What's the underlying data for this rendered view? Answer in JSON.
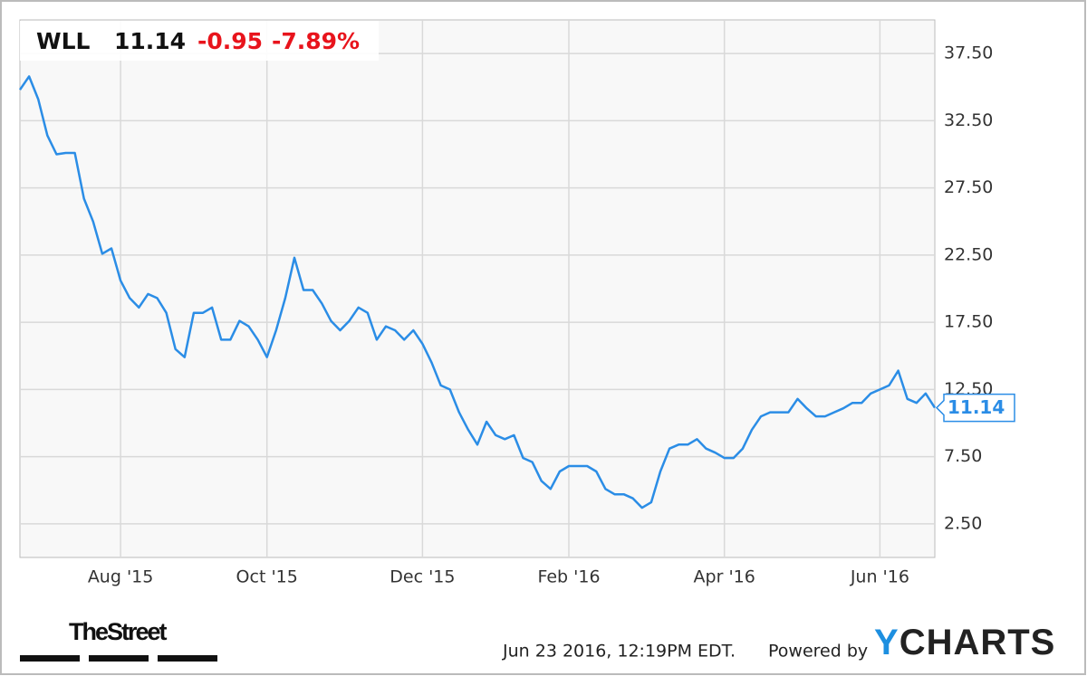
{
  "chart_data": {
    "type": "line",
    "ticker": "WLL",
    "price": "11.14",
    "change": "-0.95",
    "change_percent": "-7.89%",
    "categories": [
      null,
      null,
      null,
      null,
      null,
      null,
      null,
      null,
      null,
      null,
      null,
      "Aug '15",
      null,
      null,
      null,
      null,
      null,
      null,
      null,
      null,
      null,
      null,
      null,
      null,
      null,
      null,
      null,
      "Oct '15",
      null,
      null,
      null,
      null,
      null,
      null,
      null,
      null,
      null,
      null,
      null,
      null,
      null,
      null,
      null,
      null,
      "Dec '15",
      null,
      null,
      null,
      null,
      null,
      null,
      null,
      null,
      null,
      null,
      null,
      null,
      null,
      null,
      null,
      "Feb '16",
      null,
      null,
      null,
      null,
      null,
      null,
      null,
      null,
      null,
      null,
      null,
      null,
      null,
      null,
      null,
      null,
      "Apr '16",
      null,
      null,
      null,
      null,
      null,
      null,
      null,
      null,
      null,
      null,
      null,
      null,
      null,
      null,
      null,
      null,
      "Jun '16",
      null,
      null,
      null,
      null,
      null,
      null
    ],
    "values": [
      34.8,
      35.8,
      34.1,
      31.4,
      30.0,
      30.1,
      30.1,
      26.7,
      25.0,
      22.6,
      23.0,
      20.6,
      19.3,
      18.6,
      19.6,
      19.3,
      18.2,
      15.5,
      14.9,
      18.2,
      18.2,
      18.6,
      16.2,
      16.2,
      17.6,
      17.2,
      16.2,
      14.9,
      16.9,
      19.3,
      22.3,
      19.9,
      19.9,
      18.9,
      17.6,
      16.9,
      17.6,
      18.6,
      18.2,
      16.2,
      17.2,
      16.9,
      16.2,
      16.9,
      15.9,
      14.5,
      12.8,
      12.5,
      10.8,
      9.5,
      8.4,
      10.1,
      9.1,
      8.8,
      9.1,
      7.4,
      7.1,
      5.7,
      5.1,
      6.4,
      6.8,
      6.8,
      6.8,
      6.4,
      5.1,
      4.7,
      4.7,
      4.4,
      3.7,
      4.1,
      6.4,
      8.1,
      8.4,
      8.4,
      8.8,
      8.1,
      7.8,
      7.4,
      7.4,
      8.1,
      9.5,
      10.5,
      10.8,
      10.8,
      10.8,
      11.8,
      11.1,
      10.5,
      10.5,
      10.8,
      11.1,
      11.5,
      11.5,
      12.2,
      12.5,
      12.8,
      13.9,
      11.8,
      11.5,
      12.2,
      11.14
    ],
    "color": "#2b8de6",
    "ylim": [
      0,
      40
    ],
    "yticks": [
      {
        "value": 2.5,
        "label": "2.50"
      },
      {
        "value": 7.5,
        "label": "7.50"
      },
      {
        "value": 12.5,
        "label": "12.50"
      },
      {
        "value": 17.5,
        "label": "17.50"
      },
      {
        "value": 22.5,
        "label": "22.50"
      },
      {
        "value": 27.5,
        "label": "27.50"
      },
      {
        "value": 32.5,
        "label": "32.50"
      },
      {
        "value": 37.5,
        "label": "37.50"
      }
    ],
    "grid": true,
    "publisher": "TheStreet",
    "timestamp": "Jun 23 2016, 12:19PM EDT.",
    "powered_by": "Powered by",
    "brand": "YCHARTS"
  }
}
